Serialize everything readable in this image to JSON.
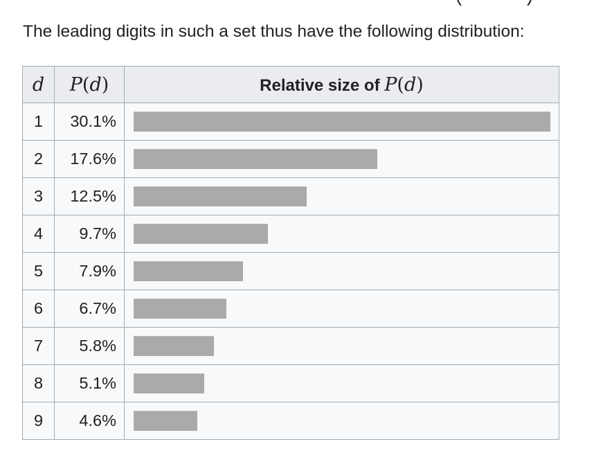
{
  "intro_text": "The leading digits in such a set thus have the following distribution:",
  "table": {
    "headers": {
      "d": "d",
      "p_prefix": "P",
      "p_arg": "d",
      "relative_label": "Relative size of ",
      "relative_math_prefix": "P",
      "relative_math_arg": "d"
    },
    "rows": [
      {
        "d": "1",
        "p": "30.1%",
        "value": 30.1
      },
      {
        "d": "2",
        "p": "17.6%",
        "value": 17.6
      },
      {
        "d": "3",
        "p": "12.5%",
        "value": 12.5
      },
      {
        "d": "4",
        "p": "9.7%",
        "value": 9.7
      },
      {
        "d": "5",
        "p": "7.9%",
        "value": 7.9
      },
      {
        "d": "6",
        "p": "6.7%",
        "value": 6.7
      },
      {
        "d": "7",
        "p": "5.8%",
        "value": 5.8
      },
      {
        "d": "8",
        "p": "5.1%",
        "value": 5.1
      },
      {
        "d": "9",
        "p": "4.6%",
        "value": 4.6
      }
    ],
    "bar_color": "#aaaaaa"
  }
}
